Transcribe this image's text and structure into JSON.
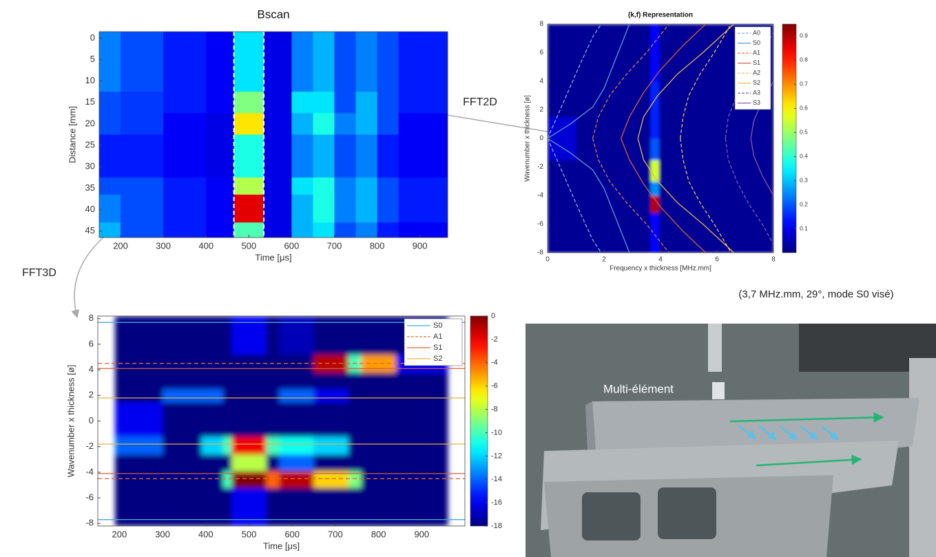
{
  "chart_data": [
    {
      "type": "heatmap",
      "title": "Bscan",
      "x_label": "Time [μs]",
      "y_label": "Distance [mm]",
      "xlim": [
        150,
        965
      ],
      "ylim": [
        -1.5,
        46.5
      ],
      "y_reversed": true,
      "xticks": [
        200,
        300,
        400,
        500,
        600,
        700,
        800,
        900
      ],
      "yticks": [
        0,
        5,
        10,
        15,
        20,
        25,
        30,
        35,
        40,
        45
      ],
      "clim": [
        0,
        1
      ],
      "xbins": [
        150,
        200,
        300,
        400,
        465,
        535,
        600,
        650,
        700,
        750,
        800,
        850,
        965
      ],
      "ybins": [
        -1.5,
        12.5,
        17.5,
        22.5,
        32.5,
        36.5,
        43,
        46.5
      ],
      "z": [
        [
          0.25,
          0.2,
          0.15,
          0.12,
          0.35,
          0.1,
          0.25,
          0.3,
          0.2,
          0.25,
          0.2,
          0.15
        ],
        [
          0.2,
          0.18,
          0.15,
          0.12,
          0.5,
          0.1,
          0.35,
          0.35,
          0.2,
          0.3,
          0.2,
          0.15
        ],
        [
          0.2,
          0.18,
          0.12,
          0.1,
          0.65,
          0.1,
          0.3,
          0.4,
          0.25,
          0.3,
          0.2,
          0.12
        ],
        [
          0.15,
          0.15,
          0.12,
          0.1,
          0.4,
          0.1,
          0.25,
          0.3,
          0.2,
          0.25,
          0.15,
          0.12
        ],
        [
          0.2,
          0.2,
          0.15,
          0.12,
          0.55,
          0.1,
          0.35,
          0.4,
          0.25,
          0.3,
          0.2,
          0.15
        ],
        [
          0.25,
          0.2,
          0.15,
          0.12,
          0.9,
          0.1,
          0.3,
          0.4,
          0.25,
          0.3,
          0.2,
          0.15
        ],
        [
          0.3,
          0.2,
          0.15,
          0.12,
          0.45,
          0.1,
          0.3,
          0.35,
          0.2,
          0.25,
          0.15,
          0.12
        ]
      ],
      "vlines": [
        465,
        535
      ],
      "vline_color": "#ffffff"
    },
    {
      "type": "heatmap",
      "title": "(k,f) Representation",
      "x_label": "Frequency x thickness [MHz.mm]",
      "y_label": "Wavenumber x thickness [ø]",
      "xlim": [
        0,
        8
      ],
      "ylim": [
        -8,
        8
      ],
      "xticks": [
        0,
        2,
        4,
        6,
        8
      ],
      "yticks": [
        -8,
        -6,
        -4,
        -2,
        0,
        2,
        4,
        6,
        8
      ],
      "clim": [
        0,
        0.95
      ],
      "cticks": [
        0.1,
        0.2,
        0.3,
        0.4,
        0.5,
        0.6,
        0.7,
        0.8,
        0.9
      ],
      "xbins": [
        0,
        1,
        2,
        3,
        3.65,
        3.95,
        5,
        6,
        7,
        8
      ],
      "ybins": [
        -8,
        -5.2,
        -4,
        -3,
        -1.5,
        0,
        1.5,
        4,
        8
      ],
      "z": [
        [
          0.02,
          0.02,
          0.02,
          0.02,
          0.12,
          0.02,
          0.02,
          0.02,
          0.02
        ],
        [
          0.02,
          0.02,
          0.02,
          0.02,
          0.9,
          0.02,
          0.02,
          0.02,
          0.02
        ],
        [
          0.02,
          0.02,
          0.02,
          0.02,
          0.25,
          0.02,
          0.02,
          0.02,
          0.02
        ],
        [
          0.02,
          0.02,
          0.02,
          0.02,
          0.55,
          0.02,
          0.02,
          0.02,
          0.02
        ],
        [
          0.08,
          0.02,
          0.02,
          0.02,
          0.2,
          0.02,
          0.02,
          0.02,
          0.02
        ],
        [
          0.08,
          0.02,
          0.02,
          0.02,
          0.15,
          0.02,
          0.02,
          0.02,
          0.02
        ],
        [
          0.02,
          0.02,
          0.02,
          0.02,
          0.15,
          0.02,
          0.02,
          0.02,
          0.02
        ],
        [
          0.02,
          0.02,
          0.02,
          0.02,
          0.12,
          0.02,
          0.02,
          0.02,
          0.02
        ]
      ],
      "legend": "northeast",
      "series": [
        {
          "name": "A0",
          "color": "#80b3e6",
          "dash": true,
          "x": [
            0,
            0.4,
            0.8,
            1.2,
            1.6,
            1.9,
            null,
            0,
            0.4,
            0.8,
            1.2,
            1.6,
            1.9
          ],
          "y": [
            0,
            1.8,
            3.6,
            5.4,
            7.1,
            8,
            null,
            0,
            -1.8,
            -3.6,
            -5.4,
            -7.1,
            -8
          ]
        },
        {
          "name": "S0",
          "color": "#5b9bd5",
          "dash": false,
          "x": [
            0,
            0.8,
            1.6,
            2.0,
            2.3,
            2.6,
            2.9,
            null,
            0,
            0.8,
            1.6,
            2.0,
            2.3,
            2.6,
            2.9
          ],
          "y": [
            0,
            1,
            2.2,
            3.5,
            5,
            6.5,
            8,
            null,
            0,
            -1,
            -2.2,
            -3.5,
            -5,
            -6.5,
            -8
          ]
        },
        {
          "name": "A1",
          "color": "#e6794a",
          "dash": true,
          "x": [
            1.6,
            1.8,
            2.2,
            2.8,
            3.5,
            4.3,
            null,
            1.6,
            1.8,
            2.2,
            2.8,
            3.5,
            4.3
          ],
          "y": [
            0,
            1.5,
            3,
            4.5,
            6,
            8,
            null,
            0,
            -1.5,
            -3,
            -4.5,
            -6,
            -8
          ]
        },
        {
          "name": "S1",
          "color": "#d95f3b",
          "dash": false,
          "x": [
            2.6,
            2.9,
            3.4,
            4.0,
            4.8,
            5.6,
            null,
            2.6,
            2.9,
            3.4,
            4.0,
            4.8,
            5.6
          ],
          "y": [
            0,
            1.5,
            3.2,
            4.8,
            6.5,
            8,
            null,
            0,
            -1.5,
            -3.2,
            -4.8,
            -6.5,
            -8
          ]
        },
        {
          "name": "A2",
          "color": "#f0c060",
          "dash": true,
          "x": [
            4.7,
            4.8,
            5.0,
            5.4,
            5.9,
            6.5,
            null,
            4.7,
            4.8,
            5.0,
            5.4,
            5.9,
            6.5
          ],
          "y": [
            0,
            1.5,
            3,
            4.5,
            6,
            8,
            null,
            0,
            -1.5,
            -3,
            -4.5,
            -6,
            -8
          ]
        },
        {
          "name": "S2",
          "color": "#e8b84a",
          "dash": false,
          "x": [
            3.2,
            3.4,
            3.9,
            4.6,
            5.5,
            6.6,
            null,
            3.2,
            3.4,
            3.9,
            4.6,
            5.5,
            6.6
          ],
          "y": [
            0,
            1.5,
            3,
            4.5,
            6,
            8,
            null,
            0,
            -1.5,
            -3,
            -4.5,
            -6,
            -8
          ]
        },
        {
          "name": "A3",
          "color": "#7a5fa8",
          "dash": true,
          "x": [
            6.3,
            6.4,
            6.7,
            7.1,
            7.6,
            8,
            null,
            6.3,
            6.4,
            6.7,
            7.1,
            7.6,
            8
          ],
          "y": [
            0,
            1.5,
            3,
            4.5,
            6,
            7.4,
            null,
            0,
            -1.5,
            -3,
            -4.5,
            -6,
            -7.4
          ]
        },
        {
          "name": "S3",
          "color": "#8a5a9a",
          "dash": false,
          "x": [
            7.2,
            7.3,
            7.6,
            8,
            null,
            7.2,
            7.3,
            7.6,
            8
          ],
          "y": [
            0,
            1.2,
            2.6,
            4,
            null,
            0,
            -1.2,
            -2.6,
            -4
          ]
        }
      ]
    },
    {
      "type": "heatmap",
      "x_label": "Time [μs]",
      "y_label": "Wavenumber x thickness [ø]",
      "xlim": [
        150,
        1000
      ],
      "ylim": [
        -8.2,
        8.2
      ],
      "xticks": [
        200,
        300,
        400,
        500,
        600,
        700,
        800,
        900
      ],
      "yticks": [
        -8,
        -6,
        -4,
        -2,
        0,
        2,
        4,
        6,
        8
      ],
      "clim": [
        -18,
        0
      ],
      "cticks": [
        0,
        -2,
        -4,
        -6,
        -8,
        -10,
        -12,
        -14,
        -16,
        -18
      ],
      "xbins": [
        190,
        300,
        390,
        440,
        460,
        540,
        570,
        650,
        730,
        760,
        840,
        960
      ],
      "ybins": [
        -8.2,
        -5.2,
        -3.9,
        -2.6,
        -1.2,
        1.5,
        2.5,
        3.8,
        5.2,
        8.2
      ],
      "z": [
        [
          -18,
          -18,
          -18,
          -18,
          -16,
          -18,
          -18,
          -18,
          -18,
          -18,
          -18
        ],
        [
          -18,
          -18,
          -18,
          -10,
          0,
          -4,
          -1,
          -6,
          -9,
          -18,
          -18
        ],
        [
          -18,
          -18,
          -18,
          -18,
          -8,
          -18,
          -14,
          -18,
          -18,
          -18,
          -18
        ],
        [
          -14,
          -18,
          -12,
          -10,
          -2,
          -10,
          -11,
          -12,
          -18,
          -18,
          -18
        ],
        [
          -16,
          -18,
          -18,
          -18,
          -18,
          -18,
          -18,
          -18,
          -18,
          -18,
          -18
        ],
        [
          -18,
          -14,
          -14,
          -18,
          -18,
          -18,
          -14,
          -16,
          -18,
          -18,
          -18
        ],
        [
          -18,
          -18,
          -18,
          -18,
          -18,
          -18,
          -18,
          -18,
          -18,
          -18,
          -18
        ],
        [
          -18,
          -18,
          -18,
          -18,
          -18,
          -18,
          -18,
          -1,
          -10,
          -5,
          -16
        ],
        [
          -18,
          -18,
          -18,
          -18,
          -16,
          -18,
          -17,
          -18,
          -18,
          -18,
          -18
        ]
      ],
      "legend": "northeast",
      "hlines": [
        {
          "name": "S0",
          "color": "#4aa8d8",
          "dash": false,
          "values": [
            7.7,
            -7.7
          ]
        },
        {
          "name": "A1",
          "color": "#e06a40",
          "dash": true,
          "values": [
            4.5,
            -4.5
          ]
        },
        {
          "name": "S1",
          "color": "#d9603a",
          "dash": false,
          "values": [
            4.1,
            -4.1
          ]
        },
        {
          "name": "S2",
          "color": "#e8b040",
          "dash": false,
          "values": [
            1.8,
            -1.8
          ]
        }
      ]
    }
  ],
  "annotations": {
    "fft2d": "FFT2D",
    "fft3d": "FFT3D"
  },
  "photo": {
    "caption": "(3,7 MHz.mm, 29°, mode S0 visé)",
    "label": "Multi-élément"
  }
}
